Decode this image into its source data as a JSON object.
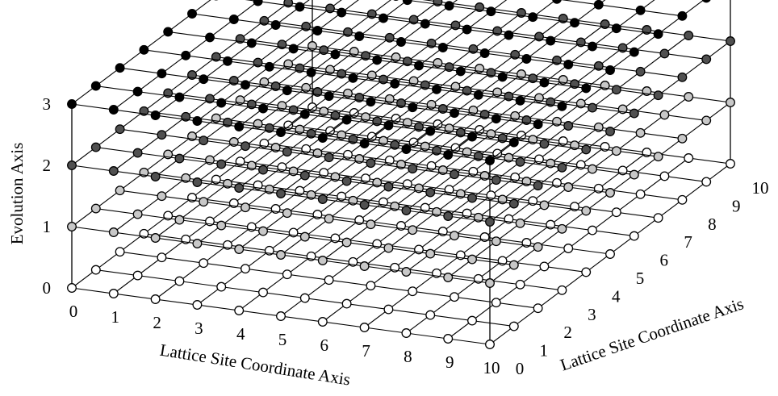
{
  "figure": {
    "z_axis_title": "Evolution Axis",
    "x_axis_title": "Lattice Site Coordinate Axis",
    "y_axis_title": "Lattice Site Coordinate Axis",
    "x_ticks": [
      "0",
      "1",
      "2",
      "3",
      "4",
      "5",
      "6",
      "7",
      "8",
      "9",
      "10"
    ],
    "y_ticks": [
      "0",
      "1",
      "2",
      "3",
      "4",
      "5",
      "6",
      "7",
      "8",
      "9",
      "10"
    ],
    "z_ticks": [
      "0",
      "1",
      "2",
      "3"
    ]
  },
  "lattice": {
    "grid_size": 11,
    "layers": [
      {
        "level": 0,
        "node_fill": "#ffffff"
      },
      {
        "level": 1,
        "node_fill": "#c8c8c8"
      },
      {
        "level": 2,
        "node_fill": "#505050"
      },
      {
        "level": 3,
        "node_fill": "#000000"
      }
    ],
    "line_color": "#000000"
  }
}
